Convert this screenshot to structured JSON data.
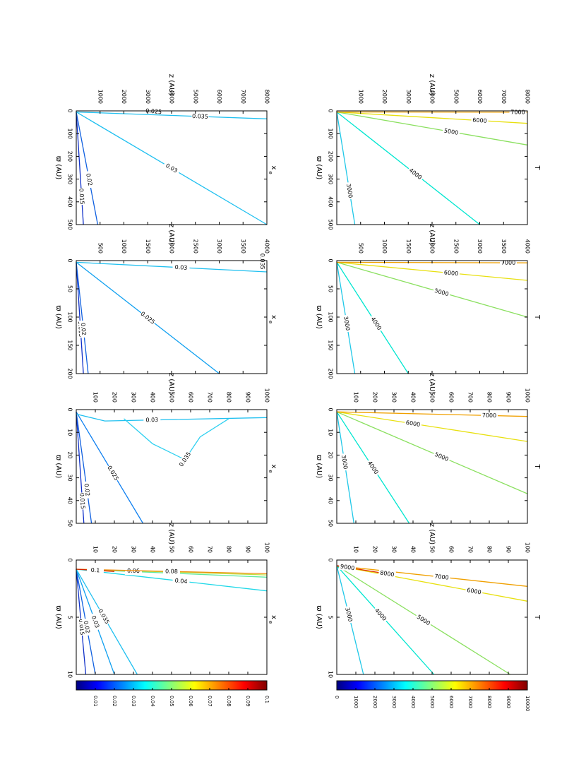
{
  "figure": {
    "rotated": "90deg clockwise (landscape figure on portrait page)",
    "rows": [
      "T",
      "x_e"
    ],
    "columns": 4
  },
  "colorbars": [
    {
      "variable": "T",
      "range": [
        0,
        10000
      ],
      "tick_labels": [
        "0",
        "1000",
        "2000",
        "3000",
        "4000",
        "5000",
        "6000",
        "7000",
        "8000",
        "9000",
        "10000"
      ],
      "colormap": "jet"
    },
    {
      "variable": "x_e",
      "range": [
        0,
        0.1
      ],
      "tick_labels": [
        "0.01",
        "0.02",
        "0.03",
        "0.04",
        "0.05",
        "0.06",
        "0.07",
        "0.08",
        "0.09",
        "0.1"
      ],
      "colormap": "jet"
    }
  ],
  "chart_data": [
    {
      "type": "contour",
      "row": "T",
      "col": 1,
      "title": "T",
      "xlabel": "ϖ (AU)",
      "ylabel": "z (AU)",
      "xlim": [
        0,
        10
      ],
      "ylim": [
        0,
        100
      ],
      "x_ticks": [
        "0",
        "5",
        "10"
      ],
      "y_ticks": [
        "10",
        "20",
        "30",
        "40",
        "50",
        "60",
        "70",
        "80",
        "90",
        "100"
      ],
      "contours": [
        {
          "label": "3000",
          "value": 3000,
          "color": "#20c8e8",
          "points": [
            [
              0.5,
              0
            ],
            [
              10,
              14
            ]
          ],
          "label_at": 0.45
        },
        {
          "label": "4000",
          "value": 4000,
          "color": "#00e6d0",
          "points": [
            [
              0.5,
              0
            ],
            [
              10,
              51
            ]
          ],
          "label_at": 0.45
        },
        {
          "label": "5000",
          "value": 5000,
          "color": "#8be060",
          "points": [
            [
              0.5,
              0
            ],
            [
              10,
              91
            ]
          ],
          "label_at": 0.5
        },
        {
          "label": "6000",
          "value": 6000,
          "color": "#e8e010",
          "points": [
            [
              0.5,
              0
            ],
            [
              3.6,
              100
            ]
          ],
          "label_at": 0.72
        },
        {
          "label": "7000",
          "value": 7000,
          "color": "#f0a000",
          "points": [
            [
              0.5,
              0
            ],
            [
              2.3,
              100
            ]
          ],
          "label_at": 0.55
        },
        {
          "label": "8000",
          "value": 8000,
          "color": "#e03000",
          "points": [
            [
              0.5,
              0
            ],
            [
              1.3,
              30
            ]
          ],
          "label_at": 0.88
        },
        {
          "label": "9000",
          "value": 9000,
          "color": "#b00000",
          "points": [
            [
              0.5,
              0
            ],
            [
              0.7,
              8
            ]
          ],
          "label_at": 0.7
        }
      ]
    },
    {
      "type": "contour",
      "row": "T",
      "col": 2,
      "title": "T",
      "xlabel": "ϖ (AU)",
      "ylabel": "z (AU)",
      "xlim": [
        0,
        50
      ],
      "ylim": [
        0,
        1000
      ],
      "x_ticks": [
        "0",
        "10",
        "20",
        "30",
        "40",
        "50"
      ],
      "y_ticks": [
        "100",
        "200",
        "300",
        "400",
        "500",
        "600",
        "700",
        "800",
        "900",
        "1000"
      ],
      "contours": [
        {
          "label": "3000",
          "value": 3000,
          "color": "#20c8e8",
          "points": [
            [
              1,
              0
            ],
            [
              50,
              90
            ]
          ],
          "label_at": 0.45
        },
        {
          "label": "4000",
          "value": 4000,
          "color": "#00e6d0",
          "points": [
            [
              1,
              0
            ],
            [
              50,
              380
            ]
          ],
          "label_at": 0.5
        },
        {
          "label": "5000",
          "value": 5000,
          "color": "#8be060",
          "points": [
            [
              1,
              0
            ],
            [
              37,
              1000
            ]
          ],
          "label_at": 0.55
        },
        {
          "label": "6000",
          "value": 6000,
          "color": "#e8e010",
          "points": [
            [
              1,
              0
            ],
            [
              14,
              1000
            ]
          ],
          "label_at": 0.4
        },
        {
          "label": "7000",
          "value": 7000,
          "color": "#f0a000",
          "points": [
            [
              1,
              0
            ],
            [
              3,
              1000
            ]
          ],
          "label_at": 0.8
        }
      ]
    },
    {
      "type": "contour",
      "row": "T",
      "col": 3,
      "title": "T",
      "xlabel": "ϖ (AU)",
      "ylabel": "z (AU)",
      "xlim": [
        0,
        200
      ],
      "ylim": [
        0,
        4000
      ],
      "x_ticks": [
        "0",
        "50",
        "100",
        "150",
        "200"
      ],
      "y_ticks": [
        "500",
        "1000",
        "1500",
        "2000",
        "2500",
        "3000",
        "3500",
        "4000"
      ],
      "contours": [
        {
          "label": "3000",
          "value": 3000,
          "color": "#20c8e8",
          "points": [
            [
              3,
              0
            ],
            [
              200,
              380
            ]
          ],
          "label_at": 0.55
        },
        {
          "label": "4000",
          "value": 4000,
          "color": "#00e6d0",
          "points": [
            [
              3,
              0
            ],
            [
              200,
              1500
            ]
          ],
          "label_at": 0.55
        },
        {
          "label": "5000",
          "value": 5000,
          "color": "#8be060",
          "points": [
            [
              3,
              0
            ],
            [
              100,
              4000
            ]
          ],
          "label_at": 0.55
        },
        {
          "label": "6000",
          "value": 6000,
          "color": "#e8e010",
          "points": [
            [
              3,
              0
            ],
            [
              35,
              4000
            ]
          ],
          "label_at": 0.6
        },
        {
          "label": "7000",
          "value": 7000,
          "color": "#f0a000",
          "points": [
            [
              3,
              0
            ],
            [
              4,
              4000
            ]
          ],
          "label_at": 0.9
        }
      ]
    },
    {
      "type": "contour",
      "row": "T",
      "col": 4,
      "title": "T",
      "xlabel": "ϖ (AU)",
      "ylabel": "z (AU)",
      "xlim": [
        0,
        500
      ],
      "ylim": [
        0,
        8000
      ],
      "x_ticks": [
        "0",
        "100",
        "200",
        "300",
        "400",
        "500"
      ],
      "y_ticks": [
        "1000",
        "2000",
        "3000",
        "4000",
        "5000",
        "6000",
        "7000",
        "8000"
      ],
      "contours": [
        {
          "label": "3000",
          "value": 3000,
          "color": "#20c8e8",
          "points": [
            [
              5,
              0
            ],
            [
              500,
              760
            ]
          ],
          "label_at": 0.7
        },
        {
          "label": "4000",
          "value": 4000,
          "color": "#00e6d0",
          "points": [
            [
              5,
              0
            ],
            [
              500,
              6000
            ]
          ],
          "label_at": 0.55
        },
        {
          "label": "5000",
          "value": 5000,
          "color": "#8be060",
          "points": [
            [
              5,
              0
            ],
            [
              150,
              8000
            ]
          ],
          "label_at": 0.6
        },
        {
          "label": "6000",
          "value": 6000,
          "color": "#e8e010",
          "points": [
            [
              5,
              0
            ],
            [
              55,
              8000
            ]
          ],
          "label_at": 0.75
        },
        {
          "label": "7000",
          "value": 7000,
          "color": "#f0a000",
          "points": [
            [
              5,
              0
            ],
            [
              6,
              8000
            ]
          ],
          "label_at": 0.95
        }
      ]
    },
    {
      "type": "contour",
      "row": "x_e",
      "col": 1,
      "title": "x_e",
      "xlabel": "ϖ (AU)",
      "ylabel": "z (AU)",
      "xlim": [
        0,
        10
      ],
      "ylim": [
        0,
        100
      ],
      "x_ticks": [
        "0",
        "5",
        "10"
      ],
      "y_ticks": [
        "10",
        "20",
        "30",
        "40",
        "50",
        "60",
        "70",
        "80",
        "90",
        "100"
      ],
      "contours": [
        {
          "label": "0.015",
          "value": 0.015,
          "color": "#1030c8",
          "points": [
            [
              0.8,
              0
            ],
            [
              10,
              5
            ]
          ],
          "label_at": 0.55
        },
        {
          "label": "0.02",
          "value": 0.02,
          "color": "#1060e0",
          "points": [
            [
              0.8,
              0
            ],
            [
              10,
              10
            ]
          ],
          "label_at": 0.55
        },
        {
          "label": "0.03",
          "value": 0.03,
          "color": "#10a0f0",
          "points": [
            [
              0.8,
              0
            ],
            [
              10,
              20
            ]
          ],
          "label_at": 0.5
        },
        {
          "label": "0.035",
          "value": 0.035,
          "color": "#20c0f0",
          "points": [
            [
              0.8,
              0
            ],
            [
              10,
              32
            ]
          ],
          "label_at": 0.45
        },
        {
          "label": "0.04",
          "value": 0.04,
          "color": "#20d8e8",
          "points": [
            [
              0.8,
              0
            ],
            [
              2.7,
              100
            ]
          ],
          "label_at": 0.55
        },
        {
          "label": "0.05",
          "value": 0.05,
          "color": "#60e8a0",
          "points": [
            [
              0.8,
              0
            ],
            [
              1.5,
              100
            ]
          ],
          "label_at": 0.3
        },
        {
          "label": "0.06",
          "value": 0.06,
          "color": "#c0e040",
          "points": [
            [
              0.8,
              0
            ],
            [
              1.3,
              100
            ]
          ],
          "label_at": 0.3
        },
        {
          "label": "0.08",
          "value": 0.08,
          "color": "#f09010",
          "points": [
            [
              0.8,
              0
            ],
            [
              1.2,
              100
            ]
          ],
          "label_at": 0.5
        },
        {
          "label": "0.1",
          "value": 0.1,
          "color": "#d02000",
          "points": [
            [
              0.8,
              0
            ],
            [
              1.0,
              20
            ]
          ],
          "label_at": 0.5
        }
      ]
    },
    {
      "type": "contour",
      "row": "x_e",
      "col": 2,
      "title": "x_e",
      "xlabel": "ϖ (AU)",
      "ylabel": "z (AU)",
      "xlim": [
        0,
        50
      ],
      "ylim": [
        0,
        1000
      ],
      "x_ticks": [
        "0",
        "10",
        "20",
        "30",
        "40",
        "50"
      ],
      "y_ticks": [
        "100",
        "200",
        "300",
        "400",
        "500",
        "600",
        "700",
        "800",
        "900",
        "1000"
      ],
      "contours": [
        {
          "label": "0.015",
          "value": 0.015,
          "color": "#1030c8",
          "points": [
            [
              1,
              0
            ],
            [
              50,
              40
            ]
          ],
          "label_at": 0.8
        },
        {
          "label": "0.02",
          "value": 0.02,
          "color": "#1060e0",
          "points": [
            [
              1,
              0
            ],
            [
              50,
              80
            ]
          ],
          "label_at": 0.7
        },
        {
          "label": "0.025",
          "value": 0.025,
          "color": "#1080f0",
          "points": [
            [
              1,
              0
            ],
            [
              50,
              350
            ]
          ],
          "label_at": 0.55
        },
        {
          "label": "0.03",
          "value": 0.03,
          "color": "#20c0f0",
          "points": [
            [
              2,
              0
            ],
            [
              5,
              150
            ],
            [
              3.5,
              1000
            ]
          ],
          "label_at": 0.4
        },
        {
          "label": "0.035",
          "value": 0.035,
          "color": "#30d0f0",
          "points": [
            [
              4,
              250
            ],
            [
              15,
              400
            ],
            [
              22,
              570
            ],
            [
              12,
              650
            ],
            [
              4,
              800
            ]
          ],
          "label_at": 0.55
        }
      ]
    },
    {
      "type": "contour",
      "row": "x_e",
      "col": 3,
      "title": "x_e",
      "xlabel": "ϖ (AU)",
      "ylabel": "z (AU)",
      "xlim": [
        0,
        200
      ],
      "ylim": [
        0,
        4000
      ],
      "x_ticks": [
        "0",
        "50",
        "100",
        "150",
        "200"
      ],
      "y_ticks": [
        "500",
        "1000",
        "1500",
        "2000",
        "2500",
        "3000",
        "3500",
        "4000"
      ],
      "contours": [
        {
          "label": "0.015",
          "value": 0.015,
          "color": "#1030c8",
          "points": [
            [
              3,
              0
            ],
            [
              200,
              150
            ]
          ],
          "label_at": 0.6
        },
        {
          "label": "0.02",
          "value": 0.02,
          "color": "#1060e0",
          "points": [
            [
              3,
              0
            ],
            [
              200,
              250
            ]
          ],
          "label_at": 0.6
        },
        {
          "label": "0.025",
          "value": 0.025,
          "color": "#10a0f0",
          "points": [
            [
              3,
              0
            ],
            [
              200,
              3000
            ]
          ],
          "label_at": 0.5
        },
        {
          "label": "0.03",
          "value": 0.03,
          "color": "#20c0f0",
          "points": [
            [
              3,
              0
            ],
            [
              20,
              4000
            ]
          ],
          "label_at": 0.55
        },
        {
          "label": "0.035",
          "value": 0.035,
          "color": "#1060e0",
          "points": [
            [
              0,
              3900
            ],
            [
              3,
              3900
            ]
          ],
          "label_at": 0.5
        }
      ]
    },
    {
      "type": "contour",
      "row": "x_e",
      "col": 4,
      "title": "x_e",
      "xlabel": "ϖ (AU)",
      "ylabel": "z (AU)",
      "xlim": [
        0,
        500
      ],
      "ylim": [
        0,
        8000
      ],
      "x_ticks": [
        "0",
        "100",
        "200",
        "300",
        "400",
        "500"
      ],
      "y_ticks": [
        "1000",
        "2000",
        "3000",
        "4000",
        "5000",
        "6000",
        "7000",
        "8000"
      ],
      "contours": [
        {
          "label": "0.015",
          "value": 0.015,
          "color": "#1030c8",
          "points": [
            [
              5,
              0
            ],
            [
              500,
              300
            ]
          ],
          "label_at": 0.75
        },
        {
          "label": "0.02",
          "value": 0.02,
          "color": "#1060e0",
          "points": [
            [
              5,
              0
            ],
            [
              500,
              900
            ]
          ],
          "label_at": 0.6
        },
        {
          "label": "0.025",
          "value": 0.025,
          "color": "#1080f0",
          "points": [
            [
              0,
              3000
            ],
            [
              5,
              3500
            ]
          ],
          "label_at": 0.5
        },
        {
          "label": "0.03",
          "value": 0.03,
          "color": "#20c0f0",
          "points": [
            [
              5,
              0
            ],
            [
              500,
              8000
            ]
          ],
          "label_at": 0.5
        },
        {
          "label": "0.035",
          "value": 0.035,
          "color": "#20c0f0",
          "points": [
            [
              5,
              0
            ],
            [
              35,
              8000
            ]
          ],
          "label_at": 0.65
        }
      ]
    }
  ]
}
